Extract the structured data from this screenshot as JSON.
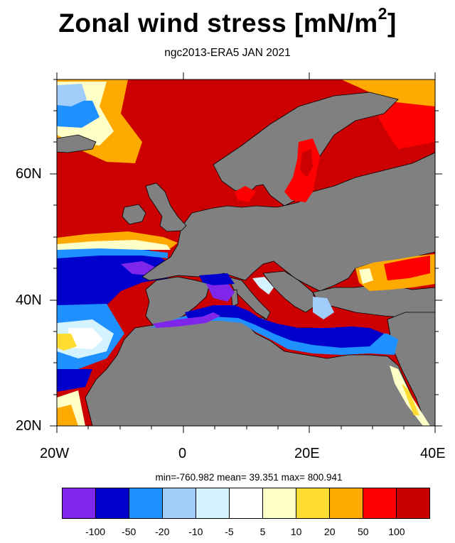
{
  "title": {
    "main": "Zonal wind stress [mN/m",
    "sup": "2",
    "close": "]"
  },
  "subtitle": "ngc2013-ERA5  JAN 2021",
  "axes": {
    "lat_labels": [
      "60N",
      "40N",
      "20N"
    ],
    "lon_labels": [
      "20W",
      "0",
      "20E",
      "40E"
    ]
  },
  "stats": {
    "text": "min=-760.982  mean=  39.351  max= 800.941"
  },
  "colorbar": {
    "colors": [
      "#7f26eb",
      "#0000cc",
      "#1e90ff",
      "#a0cdfa",
      "#d4f2ff",
      "#ffffff",
      "#ffffc8",
      "#ffdc32",
      "#ffaa00",
      "#ff0000",
      "#c80000"
    ],
    "labels": [
      "-100",
      "-50",
      "-20",
      "-10",
      "-5",
      "5",
      "10",
      "20",
      "50",
      "100"
    ]
  },
  "map_colors": {
    "land": "#808080",
    "border": "#000000"
  }
}
